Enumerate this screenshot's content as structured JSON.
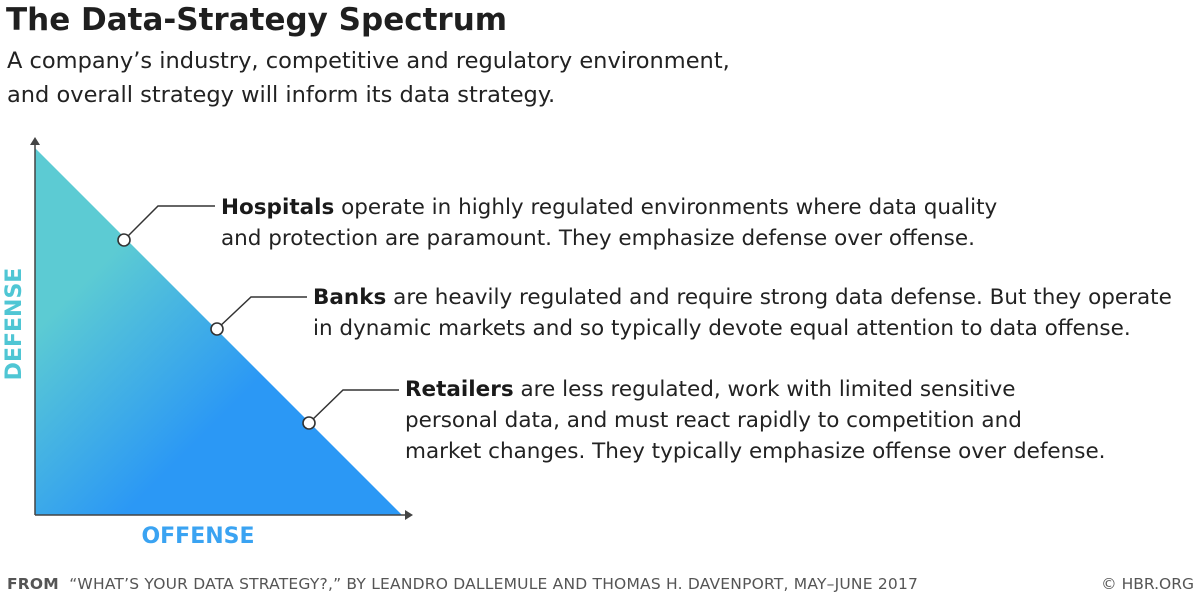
{
  "header": {
    "title": "The Data-Strategy Spectrum",
    "subtitle_line1": "A company’s industry, competitive and regulatory environment,",
    "subtitle_line2": "and overall strategy will inform its data strategy."
  },
  "axes": {
    "y_label": "DEFENSE",
    "x_label": "OFFENSE",
    "y_color": "#4fc6d4",
    "x_color": "#3aa3f2"
  },
  "triangle": {
    "color_top": "#5ccbd3",
    "color_bottom": "#2b98f5"
  },
  "callouts": [
    {
      "bold": "Hospitals",
      "line1_rest": " operate in highly regulated environments where data quality",
      "line2": "and protection are paramount. They emphasize defense over offense."
    },
    {
      "bold": "Banks",
      "line1_rest": " are heavily regulated and require strong data defense. But they operate",
      "line2": "in dynamic markets and so typically devote equal attention to data offense."
    },
    {
      "bold": "Retailers",
      "line1_rest": " are less regulated, work with limited sensitive",
      "line2": "personal data, and must react rapidly to competition and",
      "line3": "market changes. They typically emphasize offense over defense."
    }
  ],
  "footer": {
    "from_label": "FROM",
    "source": "“WHAT’S YOUR DATA STRATEGY?,” BY LEANDRO DALLEMULE AND THOMAS H. DAVENPORT, MAY–JUNE 2017",
    "credit": "© HBR.ORG"
  }
}
